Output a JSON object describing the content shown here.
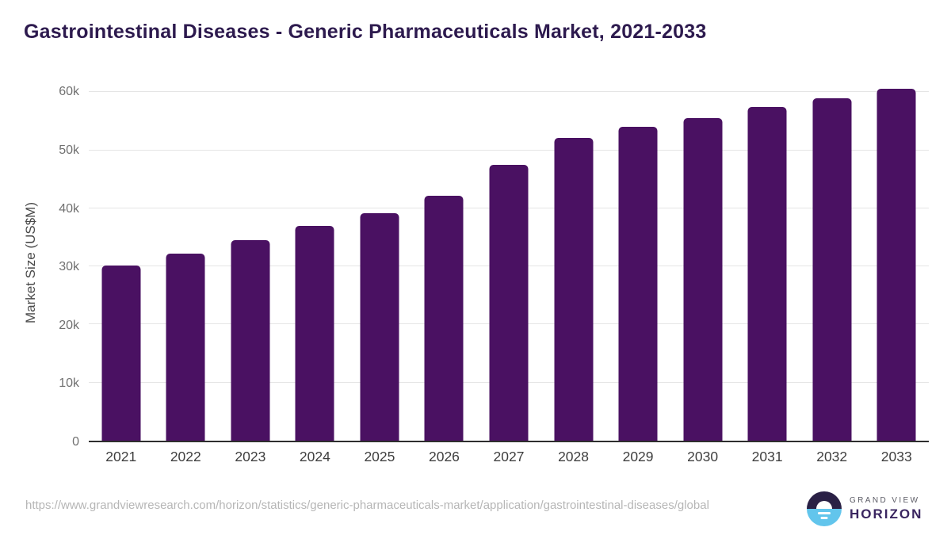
{
  "title": "Gastrointestinal Diseases - Generic Pharmaceuticals Market, 2021-2033",
  "chart_data": {
    "type": "bar",
    "categories": [
      "2021",
      "2022",
      "2023",
      "2024",
      "2025",
      "2026",
      "2027",
      "2028",
      "2029",
      "2030",
      "2031",
      "2032",
      "2033"
    ],
    "values": [
      30100,
      32200,
      34500,
      37000,
      39100,
      42200,
      47500,
      52100,
      54000,
      55600,
      57400,
      59000,
      60600
    ],
    "title": "Gastrointestinal Diseases - Generic Pharmaceuticals Market, 2021-2033",
    "xlabel": "",
    "ylabel": "Market Size (US$M)",
    "y_ticks": [
      "0",
      "10k",
      "20k",
      "30k",
      "40k",
      "50k",
      "60k"
    ],
    "y_tick_values": [
      0,
      10000,
      20000,
      30000,
      40000,
      50000,
      60000
    ],
    "ylim": [
      0,
      61400
    ],
    "grid": true,
    "legend": "none",
    "bar_color": "#4A1162"
  },
  "footer": {
    "source_url": "https://www.grandviewresearch.com/horizon/statistics/generic-pharmaceuticals-market/application/gastrointestinal-diseases/global",
    "logo": {
      "line1": "GRAND VIEW",
      "line2": "HORIZON",
      "mark_top_color": "#2A2045",
      "mark_bottom_color": "#62C5EC"
    }
  }
}
